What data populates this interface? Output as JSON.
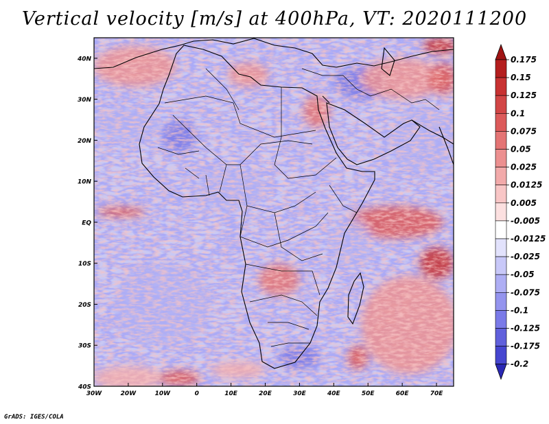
{
  "title": "Vertical velocity [m/s] at 400hPa, VT: 2020111200",
  "footer": "GrADS: IGES/COLA",
  "map": {
    "lon_range": [
      -30,
      75
    ],
    "lat_range": [
      -40,
      45
    ],
    "lat_labels": [
      {
        "lat": 40,
        "text": "40N"
      },
      {
        "lat": 30,
        "text": "30N"
      },
      {
        "lat": 20,
        "text": "20N"
      },
      {
        "lat": 10,
        "text": "10N"
      },
      {
        "lat": 0,
        "text": "EQ"
      },
      {
        "lat": -10,
        "text": "10S"
      },
      {
        "lat": -20,
        "text": "20S"
      },
      {
        "lat": -30,
        "text": "30S"
      },
      {
        "lat": -40,
        "text": "40S"
      }
    ],
    "lon_labels": [
      {
        "lon": -30,
        "text": "30W"
      },
      {
        "lon": -20,
        "text": "20W"
      },
      {
        "lon": -10,
        "text": "10W"
      },
      {
        "lon": 0,
        "text": "0"
      },
      {
        "lon": 10,
        "text": "10E"
      },
      {
        "lon": 20,
        "text": "20E"
      },
      {
        "lon": 30,
        "text": "30E"
      },
      {
        "lon": 40,
        "text": "40E"
      },
      {
        "lon": 50,
        "text": "50E"
      },
      {
        "lon": 60,
        "text": "60E"
      },
      {
        "lon": 70,
        "text": "70E"
      }
    ],
    "field_hotspots": [
      {
        "lon": -22,
        "lat": 2.5,
        "rx": 7,
        "ry": 1.3,
        "value": 0.12
      },
      {
        "lon": -18,
        "lat": 38,
        "rx": 12,
        "ry": 5,
        "value": 0.05
      },
      {
        "lon": -20,
        "lat": 24,
        "rx": 10,
        "ry": 4,
        "value": -0.05
      },
      {
        "lon": -5,
        "lat": 21,
        "rx": 5,
        "ry": 4,
        "value": -0.1
      },
      {
        "lon": 15,
        "lat": 36,
        "rx": 6,
        "ry": 3,
        "value": 0.05
      },
      {
        "lon": 35,
        "lat": 27,
        "rx": 4,
        "ry": 4,
        "value": 0.08
      },
      {
        "lon": 48,
        "lat": 34,
        "rx": 8,
        "ry": 4,
        "value": -0.08
      },
      {
        "lon": 60,
        "lat": 35,
        "rx": 12,
        "ry": 5,
        "value": 0.06
      },
      {
        "lon": 71,
        "lat": 43,
        "rx": 5,
        "ry": 2,
        "value": 0.15
      },
      {
        "lon": 72,
        "lat": 35,
        "rx": 4,
        "ry": 4,
        "value": 0.12
      },
      {
        "lon": 66,
        "lat": 20,
        "rx": 10,
        "ry": 8,
        "value": -0.05
      },
      {
        "lon": 58,
        "lat": 0,
        "rx": 14,
        "ry": 4,
        "value": 0.1
      },
      {
        "lon": 70,
        "lat": -10,
        "rx": 5,
        "ry": 4,
        "value": 0.15
      },
      {
        "lon": 62,
        "lat": -25,
        "rx": 14,
        "ry": 12,
        "value": 0.05
      },
      {
        "lon": 47,
        "lat": -33,
        "rx": 3,
        "ry": 3,
        "value": 0.12
      },
      {
        "lon": 24,
        "lat": -14,
        "rx": 6,
        "ry": 4,
        "value": 0.08
      },
      {
        "lon": 30,
        "lat": -33,
        "rx": 6,
        "ry": 3,
        "value": -0.1
      },
      {
        "lon": -10,
        "lat": -20,
        "rx": 14,
        "ry": 10,
        "value": -0.03
      },
      {
        "lon": -20,
        "lat": -38,
        "rx": 10,
        "ry": 3,
        "value": 0.04
      },
      {
        "lon": -5,
        "lat": -38,
        "rx": 6,
        "ry": 2,
        "value": 0.1
      },
      {
        "lon": 12,
        "lat": -36,
        "rx": 8,
        "ry": 2,
        "value": 0.04
      },
      {
        "lon": 10,
        "lat": 8,
        "rx": 10,
        "ry": 5,
        "value": -0.03
      },
      {
        "lon": 45,
        "lat": -5,
        "rx": 6,
        "ry": 6,
        "value": -0.04
      }
    ]
  },
  "colorbar": {
    "levels": [
      {
        "label": "0.175",
        "color": "#b41e1e"
      },
      {
        "label": "0.15",
        "color": "#c83232"
      },
      {
        "label": "0.125",
        "color": "#d24646"
      },
      {
        "label": "0.1",
        "color": "#dc5a5a"
      },
      {
        "label": "0.075",
        "color": "#e47474"
      },
      {
        "label": "0.05",
        "color": "#ec9090"
      },
      {
        "label": "0.025",
        "color": "#f2aaaa"
      },
      {
        "label": "0.0125",
        "color": "#f8c6c6"
      },
      {
        "label": "0.005",
        "color": "#fce0e0"
      },
      {
        "label": "-0.005",
        "color": "#ffffff"
      },
      {
        "label": "-0.0125",
        "color": "#e2e2fc"
      },
      {
        "label": "-0.025",
        "color": "#c8c8f8"
      },
      {
        "label": "-0.05",
        "color": "#aeaef4"
      },
      {
        "label": "-0.075",
        "color": "#9494ee"
      },
      {
        "label": "-0.1",
        "color": "#7a7ae8"
      },
      {
        "label": "-0.125",
        "color": "#6060dc"
      },
      {
        "label": "-0.175",
        "color": "#4646d0"
      },
      {
        "label": "-0.2",
        "color": "#3232c0"
      }
    ],
    "top_color": "#a01414",
    "bottom_color": "#2a28b4"
  }
}
